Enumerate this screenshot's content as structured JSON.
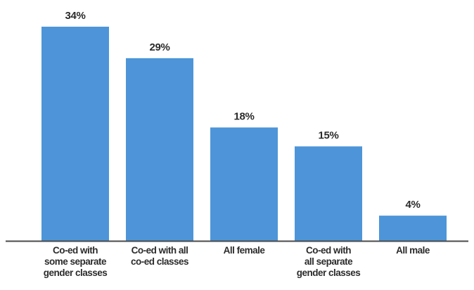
{
  "chart_data": {
    "type": "bar",
    "categories": [
      "Co-ed with some separate gender classes",
      "Co-ed with all co-ed classes",
      "All female",
      "Co-ed with all separate gender classes",
      "All male"
    ],
    "category_label_lines": [
      [
        "Co-ed with",
        "some separate",
        "gender classes"
      ],
      [
        "Co-ed with all",
        "co-ed classes"
      ],
      [
        "All female"
      ],
      [
        "Co-ed with",
        "all separate",
        "gender classes"
      ],
      [
        "All male"
      ]
    ],
    "values": [
      34,
      29,
      18,
      15,
      4
    ],
    "value_labels": [
      "34%",
      "29%",
      "18%",
      "15%",
      "4%"
    ],
    "unit": "%",
    "title": "",
    "xlabel": "",
    "ylabel": "",
    "ylim": [
      0,
      34
    ],
    "grid": false,
    "legend": "none",
    "colors": {
      "bar": "#4d95d8",
      "axis": "#4a4a4a",
      "text": "#2b2b2b"
    }
  }
}
